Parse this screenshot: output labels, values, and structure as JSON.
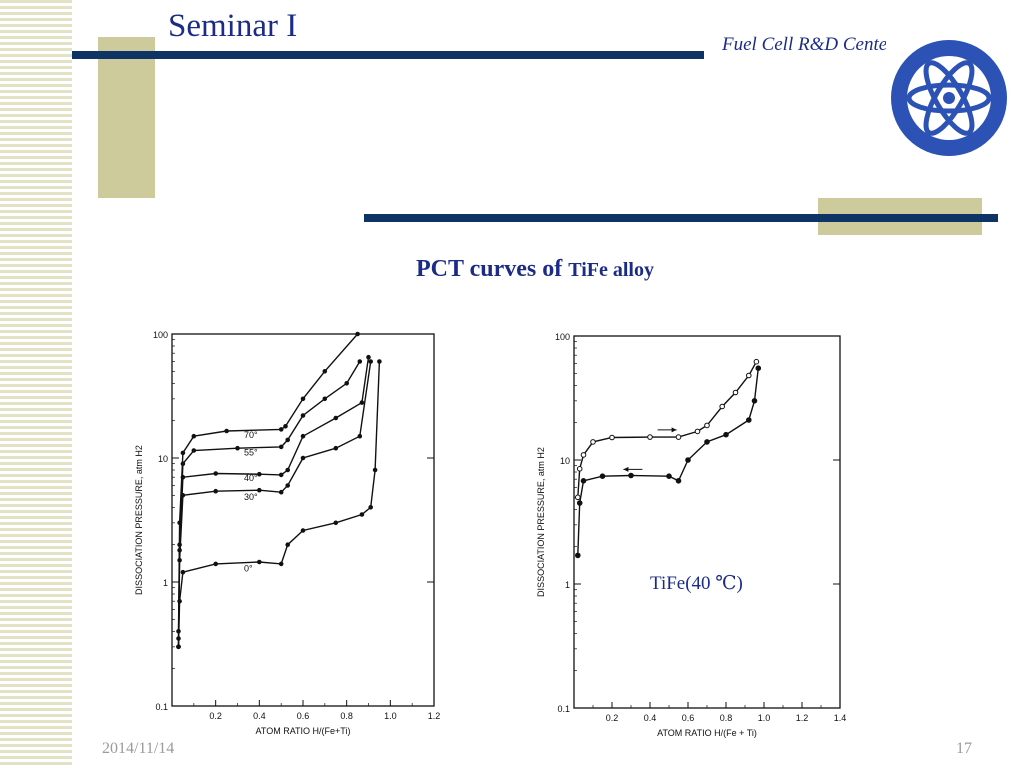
{
  "slide": {
    "title": "Seminar I",
    "center_label": "Fuel Cell R&D Center",
    "heading_main": "PCT curves of ",
    "heading_small": "TiFe alloy",
    "tife_label": "TiFe(40 ℃)",
    "date": "2014/11/14",
    "page_number": "17"
  },
  "colors": {
    "navy": "#0d3464",
    "khaki": "#cdcb9c",
    "title_blue": "#1c2c86"
  },
  "chart_data": [
    {
      "type": "line",
      "ylabel": "DISSOCIATION PRESSURE, atm H2",
      "xlabel": "ATOM RATIO H/(Fe+Ti)",
      "y_scale": "log",
      "xlim": [
        0,
        1.2
      ],
      "ylim": [
        0.1,
        100
      ],
      "x_ticks": [
        "0.2",
        "0.4",
        "0.6",
        "0.8",
        "1.0",
        "1.2"
      ],
      "y_ticks": [
        "100",
        "10",
        "1",
        "0.1"
      ],
      "annotations": [
        "70°",
        "55°",
        "40°",
        "30°",
        "0°"
      ],
      "series": [
        {
          "name": "70°",
          "points": [
            [
              0.03,
              0.4
            ],
            [
              0.035,
              3
            ],
            [
              0.05,
              11
            ],
            [
              0.1,
              15
            ],
            [
              0.25,
              16.5
            ],
            [
              0.5,
              17
            ],
            [
              0.52,
              18
            ],
            [
              0.6,
              30
            ],
            [
              0.7,
              50
            ],
            [
              0.85,
              100
            ]
          ]
        },
        {
          "name": "55°",
          "points": [
            [
              0.03,
              0.35
            ],
            [
              0.035,
              2
            ],
            [
              0.05,
              9
            ],
            [
              0.1,
              11.5
            ],
            [
              0.3,
              12
            ],
            [
              0.5,
              12.3
            ],
            [
              0.53,
              14
            ],
            [
              0.6,
              22
            ],
            [
              0.7,
              30
            ],
            [
              0.8,
              40
            ],
            [
              0.86,
              60
            ]
          ]
        },
        {
          "name": "40°",
          "points": [
            [
              0.03,
              0.3
            ],
            [
              0.035,
              1.8
            ],
            [
              0.05,
              7
            ],
            [
              0.2,
              7.5
            ],
            [
              0.4,
              7.4
            ],
            [
              0.5,
              7.3
            ],
            [
              0.53,
              8
            ],
            [
              0.6,
              15
            ],
            [
              0.75,
              21
            ],
            [
              0.87,
              28
            ],
            [
              0.9,
              65
            ]
          ]
        },
        {
          "name": "30°",
          "points": [
            [
              0.03,
              0.3
            ],
            [
              0.035,
              1.5
            ],
            [
              0.05,
              5
            ],
            [
              0.2,
              5.4
            ],
            [
              0.4,
              5.5
            ],
            [
              0.5,
              5.3
            ],
            [
              0.53,
              6
            ],
            [
              0.6,
              10
            ],
            [
              0.75,
              12
            ],
            [
              0.86,
              15
            ],
            [
              0.91,
              60
            ]
          ]
        },
        {
          "name": "0°",
          "points": [
            [
              0.03,
              0.3
            ],
            [
              0.035,
              0.7
            ],
            [
              0.05,
              1.2
            ],
            [
              0.2,
              1.4
            ],
            [
              0.4,
              1.45
            ],
            [
              0.5,
              1.4
            ],
            [
              0.53,
              2
            ],
            [
              0.6,
              2.6
            ],
            [
              0.75,
              3
            ],
            [
              0.87,
              3.5
            ],
            [
              0.91,
              4
            ],
            [
              0.93,
              8
            ],
            [
              0.95,
              60
            ]
          ]
        }
      ]
    },
    {
      "type": "line",
      "ylabel": "DISSOCIATION PRESSURE, atm H2",
      "xlabel": "ATOM RATIO H/(Fe + Ti)",
      "y_scale": "log",
      "xlim": [
        0,
        1.4
      ],
      "ylim": [
        0.1,
        100
      ],
      "x_ticks": [
        "0.2",
        "0.4",
        "0.6",
        "0.8",
        "1.0",
        "1.2",
        "1.4"
      ],
      "y_ticks": [
        "100",
        "10",
        "1",
        "0.1"
      ],
      "series": [
        {
          "points": [
            [
              0.02,
              5
            ],
            [
              0.03,
              8.5
            ],
            [
              0.05,
              11
            ],
            [
              0.1,
              14
            ],
            [
              0.2,
              15.2
            ],
            [
              0.4,
              15.3
            ],
            [
              0.55,
              15.3
            ],
            [
              0.65,
              17
            ],
            [
              0.7,
              19
            ],
            [
              0.78,
              27
            ],
            [
              0.85,
              35
            ],
            [
              0.92,
              48
            ],
            [
              0.96,
              62
            ]
          ]
        },
        {
          "points": [
            [
              0.02,
              1.7
            ],
            [
              0.03,
              4.5
            ],
            [
              0.05,
              6.8
            ],
            [
              0.15,
              7.4
            ],
            [
              0.3,
              7.5
            ],
            [
              0.5,
              7.4
            ],
            [
              0.55,
              6.8
            ],
            [
              0.6,
              10
            ],
            [
              0.7,
              14
            ],
            [
              0.8,
              16
            ],
            [
              0.92,
              21
            ],
            [
              0.95,
              30
            ],
            [
              0.97,
              55
            ]
          ]
        }
      ]
    }
  ]
}
